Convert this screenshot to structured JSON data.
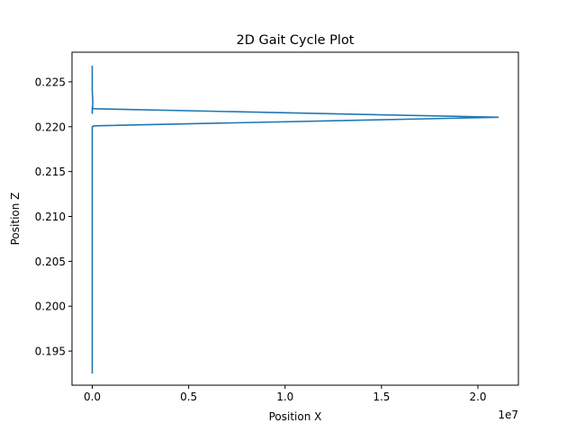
{
  "chart_data": {
    "type": "line",
    "title": "2D Gait Cycle Plot",
    "xlabel": "Position X",
    "ylabel": "Position Z",
    "x_offset_label": "1e7",
    "xlim": [
      -1050000,
      22100000
    ],
    "ylim": [
      0.1912,
      0.2283
    ],
    "x_ticks": [
      {
        "value": 0,
        "label": "0.0"
      },
      {
        "value": 5000000,
        "label": "0.5"
      },
      {
        "value": 10000000,
        "label": "1.0"
      },
      {
        "value": 15000000,
        "label": "1.5"
      },
      {
        "value": 20000000,
        "label": "2.0"
      }
    ],
    "y_ticks": [
      {
        "value": 0.195,
        "label": "0.195"
      },
      {
        "value": 0.2,
        "label": "0.200"
      },
      {
        "value": 0.205,
        "label": "0.205"
      },
      {
        "value": 0.21,
        "label": "0.210"
      },
      {
        "value": 0.215,
        "label": "0.215"
      },
      {
        "value": 0.22,
        "label": "0.220"
      },
      {
        "value": 0.225,
        "label": "0.225"
      }
    ],
    "grid": false,
    "series": [
      {
        "color": "#1f77b4",
        "x": [
          0,
          0,
          30000,
          0,
          0,
          100000,
          21050000,
          100000,
          0,
          0,
          0
        ],
        "y": [
          0.2268,
          0.224,
          0.2228,
          0.2215,
          0.2221,
          0.222,
          0.22105,
          0.2201,
          0.22,
          0.218,
          0.1925
        ]
      }
    ]
  }
}
